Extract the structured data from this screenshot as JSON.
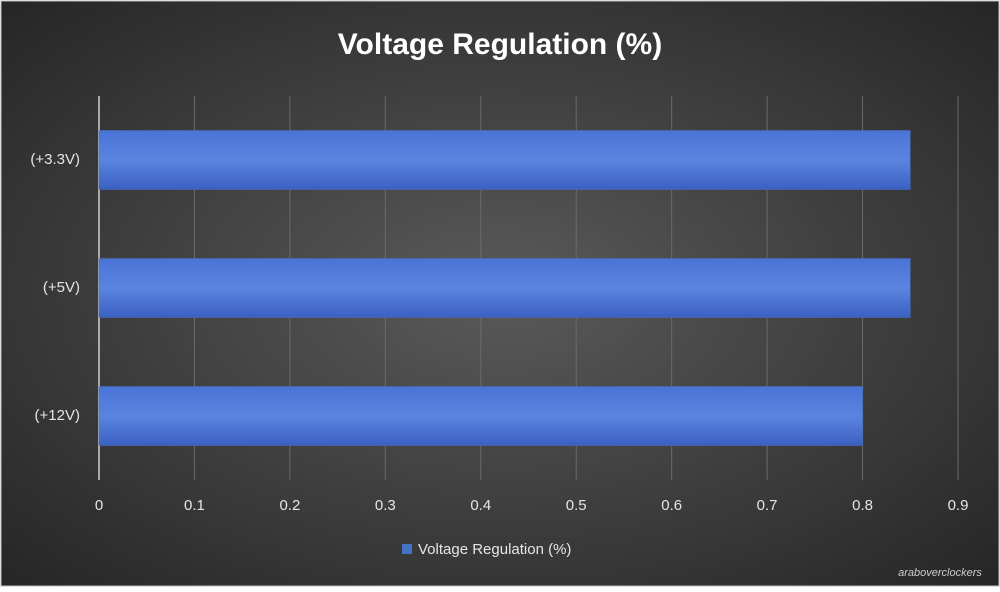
{
  "chart_data": {
    "type": "bar",
    "orientation": "horizontal",
    "title": "Voltage Regulation (%)",
    "categories": [
      "(+3.3V)",
      "(+5V)",
      "(+12V)"
    ],
    "series": [
      {
        "name": "Voltage Regulation (%)",
        "color": "#4472c4",
        "values": [
          0.85,
          0.85,
          0.8
        ]
      }
    ],
    "xlim": [
      0,
      0.9
    ],
    "xticks": [
      0,
      0.1,
      0.2,
      0.3,
      0.4,
      0.5,
      0.6,
      0.7,
      0.8,
      0.9
    ],
    "grid": true,
    "legend": "bottom"
  },
  "watermark": "araboverclockers"
}
